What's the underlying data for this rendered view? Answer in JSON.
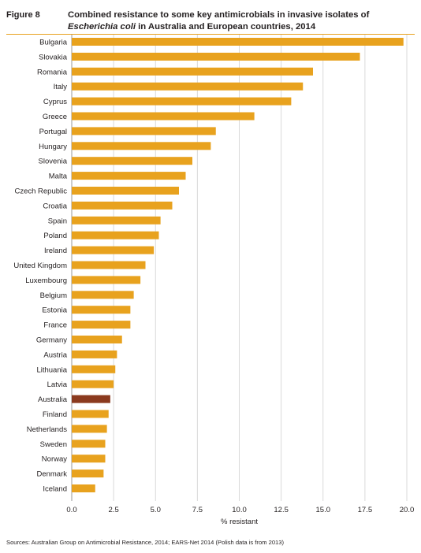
{
  "figure": {
    "label": "Figure 8",
    "title_part1": "Combined resistance to some key antimicrobials in invasive isolates of",
    "title_italic": "Escherichia coli",
    "title_part2": " in Australia and European countries, 2014"
  },
  "colors": {
    "bar": "#e8a21e",
    "highlight": "#8b3a1e",
    "grid": "#d9d9d9",
    "rule": "#e8a21e"
  },
  "source": "Sources:  Australian Group on Antimicrobial Resistance, 2014; EARS-Net 2014 (Polish data is from 2013)",
  "chart_data": {
    "type": "bar",
    "orientation": "horizontal",
    "xlabel": "% resistant",
    "ylabel": "",
    "xlim": [
      0,
      20
    ],
    "xticks": [
      "0.0",
      "2.5",
      "5.0",
      "7.5",
      "10.0",
      "12.5",
      "15.0",
      "17.5",
      "20.0"
    ],
    "grid": "vertical",
    "highlight_category": "Australia",
    "categories": [
      "Bulgaria",
      "Slovakia",
      "Romania",
      "Italy",
      "Cyprus",
      "Greece",
      "Portugal",
      "Hungary",
      "Slovenia",
      "Malta",
      "Czech Republic",
      "Croatia",
      "Spain",
      "Poland",
      "Ireland",
      "United Kingdom",
      "Luxembourg",
      "Belgium",
      "Estonia",
      "France",
      "Germany",
      "Austria",
      "Lithuania",
      "Latvia",
      "Australia",
      "Finland",
      "Netherlands",
      "Sweden",
      "Norway",
      "Denmark",
      "Iceland"
    ],
    "values": [
      19.8,
      17.2,
      14.4,
      13.8,
      13.1,
      10.9,
      8.6,
      8.3,
      7.2,
      6.8,
      6.4,
      6.0,
      5.3,
      5.2,
      4.9,
      4.4,
      4.1,
      3.7,
      3.5,
      3.5,
      3.0,
      2.7,
      2.6,
      2.5,
      2.3,
      2.2,
      2.1,
      2.0,
      2.0,
      1.9,
      1.4
    ]
  }
}
